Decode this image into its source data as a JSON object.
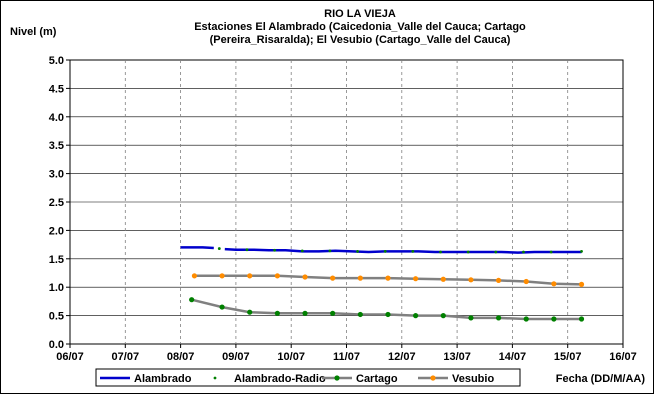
{
  "chart_data": {
    "type": "line",
    "title_lines": [
      "RIO LA VIEJA",
      "Estaciones El Alambrado (Caicedonia_Valle del Cauca; Cartago",
      "(Pereira_Risaralda);  El Vesubio (Cartago_Valle del Cauca)"
    ],
    "ylabel": "Nivel (m)",
    "xlabel": "Fecha (DD/M/AA)",
    "x_ticks": [
      "06/07",
      "07/07",
      "08/07",
      "09/07",
      "10/07",
      "11/07",
      "12/07",
      "13/07",
      "14/07",
      "15/07",
      "16/07"
    ],
    "xlim": [
      6,
      16
    ],
    "y_ticks": [
      "0.0",
      "0.5",
      "1.0",
      "1.5",
      "2.0",
      "2.5",
      "3.0",
      "3.5",
      "4.0",
      "4.5",
      "5.0"
    ],
    "ylim": [
      0,
      5
    ],
    "grid": true,
    "legend_position": "bottom",
    "series": [
      {
        "name": "Alambrado",
        "color": "#0000cc",
        "style": "line",
        "segments": [
          [
            [
              8.0,
              1.7
            ],
            [
              8.2,
              1.7
            ],
            [
              8.4,
              1.7
            ],
            [
              8.6,
              1.69
            ]
          ],
          [
            [
              8.8,
              1.67
            ],
            [
              9.0,
              1.66
            ],
            [
              9.3,
              1.66
            ],
            [
              9.6,
              1.65
            ],
            [
              9.9,
              1.65
            ],
            [
              10.2,
              1.63
            ],
            [
              10.5,
              1.63
            ],
            [
              10.8,
              1.64
            ],
            [
              11.1,
              1.63
            ],
            [
              11.4,
              1.62
            ],
            [
              11.7,
              1.63
            ],
            [
              12.0,
              1.63
            ],
            [
              12.3,
              1.63
            ],
            [
              12.6,
              1.62
            ],
            [
              12.9,
              1.62
            ],
            [
              13.2,
              1.62
            ],
            [
              13.5,
              1.62
            ],
            [
              13.8,
              1.62
            ],
            [
              14.1,
              1.61
            ],
            [
              14.4,
              1.62
            ],
            [
              14.7,
              1.62
            ],
            [
              15.0,
              1.62
            ],
            [
              15.25,
              1.62
            ]
          ]
        ]
      },
      {
        "name": "Alambrado-Radio",
        "color": "#008000",
        "style": "dots",
        "points": [
          [
            8.7,
            1.68
          ],
          [
            9.2,
            1.66
          ],
          [
            9.7,
            1.65
          ],
          [
            10.2,
            1.64
          ],
          [
            10.7,
            1.64
          ],
          [
            11.2,
            1.63
          ],
          [
            11.7,
            1.63
          ],
          [
            12.2,
            1.63
          ],
          [
            12.7,
            1.62
          ],
          [
            13.2,
            1.62
          ],
          [
            13.7,
            1.62
          ],
          [
            14.2,
            1.62
          ],
          [
            14.7,
            1.62
          ],
          [
            15.25,
            1.63
          ]
        ]
      },
      {
        "name": "Cartago",
        "color": "#808080",
        "marker_color": "#008000",
        "style": "line-markers",
        "points": [
          [
            8.2,
            0.78
          ],
          [
            8.75,
            0.65
          ],
          [
            9.25,
            0.56
          ],
          [
            9.75,
            0.54
          ],
          [
            10.25,
            0.54
          ],
          [
            10.75,
            0.54
          ],
          [
            11.25,
            0.52
          ],
          [
            11.75,
            0.52
          ],
          [
            12.25,
            0.5
          ],
          [
            12.75,
            0.5
          ],
          [
            13.25,
            0.46
          ],
          [
            13.75,
            0.46
          ],
          [
            14.25,
            0.44
          ],
          [
            14.75,
            0.44
          ],
          [
            15.25,
            0.44
          ]
        ]
      },
      {
        "name": "Vesubio",
        "color": "#808080",
        "marker_color": "#ff8c00",
        "style": "line-markers",
        "points": [
          [
            8.25,
            1.2
          ],
          [
            8.75,
            1.2
          ],
          [
            9.25,
            1.2
          ],
          [
            9.75,
            1.2
          ],
          [
            10.25,
            1.18
          ],
          [
            10.75,
            1.16
          ],
          [
            11.25,
            1.16
          ],
          [
            11.75,
            1.16
          ],
          [
            12.25,
            1.15
          ],
          [
            12.75,
            1.14
          ],
          [
            13.25,
            1.13
          ],
          [
            13.75,
            1.12
          ],
          [
            14.25,
            1.1
          ],
          [
            14.75,
            1.06
          ],
          [
            15.25,
            1.05
          ]
        ]
      }
    ]
  }
}
